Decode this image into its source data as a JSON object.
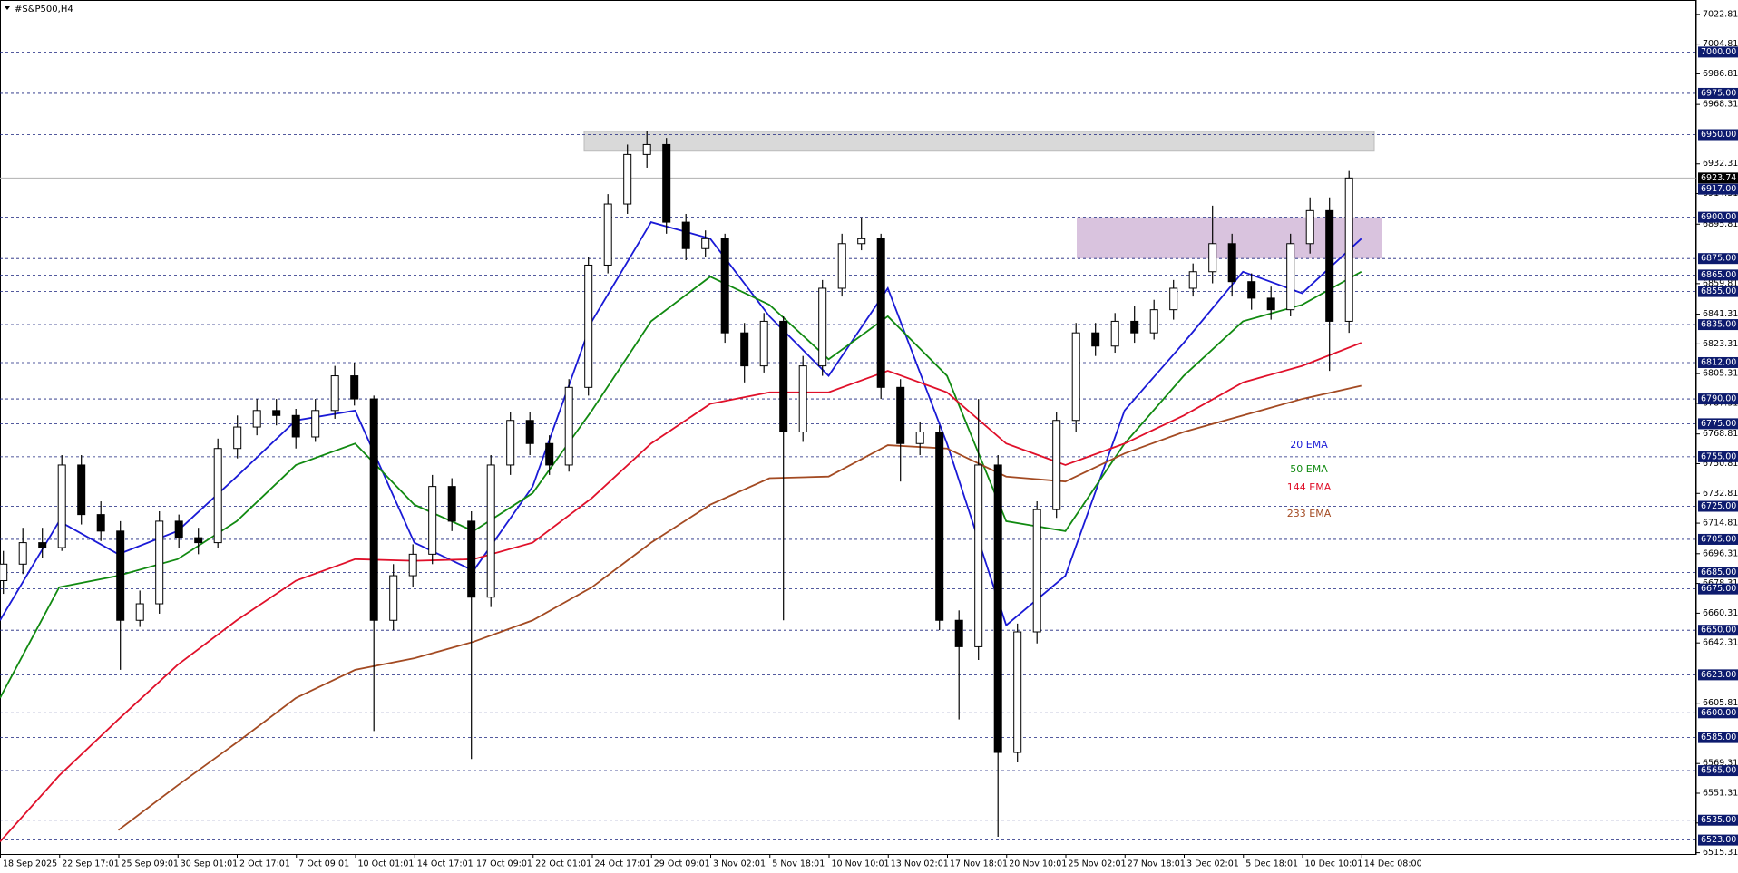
{
  "chart_data": {
    "type": "candlestick",
    "title": "#S&P500,H4",
    "ylim": [
      6514,
      7031.5
    ],
    "yticks": [
      7022.81,
      7004.81,
      6986.81,
      6968.31,
      6932.31,
      6914.31,
      6895.81,
      6859.81,
      6841.31,
      6823.31,
      6805.31,
      6787.31,
      6768.81,
      6750.81,
      6732.81,
      6714.81,
      6696.31,
      6678.31,
      6660.31,
      6642.31,
      6605.81,
      6569.31,
      6551.31,
      6533.31,
      6515.31
    ],
    "levels": [
      {
        "value": 7000,
        "label": "7000.00"
      },
      {
        "value": 6975,
        "label": "6975.00"
      },
      {
        "value": 6950,
        "label": "6950.00"
      },
      {
        "value": 6917,
        "label": "6917.00"
      },
      {
        "value": 6900,
        "label": "6900.00"
      },
      {
        "value": 6875,
        "label": "6875.00"
      },
      {
        "value": 6865,
        "label": "6865.00"
      },
      {
        "value": 6855,
        "label": "6855.00"
      },
      {
        "value": 6835,
        "label": "6835.00"
      },
      {
        "value": 6812,
        "label": "6812.00"
      },
      {
        "value": 6790,
        "label": "6790.00"
      },
      {
        "value": 6775,
        "label": "6775.00"
      },
      {
        "value": 6755,
        "label": "6755.00"
      },
      {
        "value": 6725,
        "label": "6725.00"
      },
      {
        "value": 6705,
        "label": "6705.00"
      },
      {
        "value": 6685,
        "label": "6685.00"
      },
      {
        "value": 6675,
        "label": "6675.00"
      },
      {
        "value": 6650,
        "label": "6650.00"
      },
      {
        "value": 6623,
        "label": "6623.00"
      },
      {
        "value": 6600,
        "label": "6600.00"
      },
      {
        "value": 6585,
        "label": "6585.00"
      },
      {
        "value": 6565,
        "label": "6565.00"
      },
      {
        "value": 6535,
        "label": "6535.00"
      },
      {
        "value": 6523,
        "label": "6523.00"
      }
    ],
    "current_price": 6923.74,
    "zones": [
      {
        "low": 6940,
        "high": 6952,
        "color": "#d9d9d9"
      },
      {
        "low": 6875,
        "high": 6900,
        "color": "#d9c3de"
      }
    ],
    "x_labels": [
      "18 Sep 2025",
      "22 Sep 17:01",
      "25 Sep 09:01",
      "30 Sep 01:01",
      "2 Oct 17:01",
      "7 Oct 09:01",
      "10 Oct 01:01",
      "14 Oct 17:01",
      "17 Oct 09:01",
      "22 Oct 01:01",
      "24 Oct 17:01",
      "29 Oct 09:01",
      "3 Nov 02:01",
      "5 Nov 18:01",
      "10 Nov 10:01",
      "13 Nov 02:01",
      "17 Nov 18:01",
      "20 Nov 10:01",
      "25 Nov 02:01",
      "27 Nov 18:01",
      "3 Dec 02:01",
      "5 Dec 18:01",
      "10 Dec 10:01",
      "14 Dec 08:00"
    ],
    "candles": {
      "open": [
        6680,
        6690,
        6703,
        6700,
        6750,
        6720,
        6710,
        6656,
        6666,
        6716,
        6706,
        6703,
        6760,
        6773,
        6783,
        6780,
        6767,
        6783,
        6804,
        6790,
        6656,
        6683,
        6696,
        6737,
        6716,
        6670,
        6750,
        6777,
        6763,
        6750,
        6797,
        6871,
        6908,
        6938,
        6944,
        6897,
        6881,
        6887,
        6830,
        6810,
        6837,
        6770,
        6810,
        6857,
        6884,
        6887,
        6797,
        6763,
        6770,
        6656,
        6640,
        6750,
        6576,
        6649,
        6723,
        6777,
        6830,
        6822,
        6837,
        6830,
        6844,
        6857,
        6867,
        6884,
        6861,
        6851,
        6844,
        6884,
        6904,
        6837
      ],
      "high": [
        6698,
        6712,
        6712,
        6756,
        6756,
        6728,
        6716,
        6674,
        6722,
        6720,
        6712,
        6766,
        6780,
        6790,
        6790,
        6784,
        6790,
        6810,
        6812,
        6792,
        6690,
        6702,
        6744,
        6742,
        6722,
        6756,
        6782,
        6782,
        6768,
        6802,
        6876,
        6914,
        6944,
        6952,
        6948,
        6902,
        6892,
        6890,
        6836,
        6842,
        6840,
        6816,
        6862,
        6890,
        6900,
        6890,
        6802,
        6776,
        6774,
        6662,
        6790,
        6756,
        6654,
        6728,
        6782,
        6836,
        6836,
        6842,
        6846,
        6850,
        6862,
        6872,
        6907,
        6890,
        6866,
        6858,
        6890,
        6912,
        6912,
        6928
      ],
      "low": [
        6672,
        6684,
        6694,
        6698,
        6714,
        6704,
        6626,
        6652,
        6660,
        6700,
        6696,
        6700,
        6754,
        6768,
        6774,
        6760,
        6764,
        6778,
        6786,
        6589,
        6650,
        6676,
        6690,
        6710,
        6572,
        6664,
        6744,
        6756,
        6744,
        6746,
        6792,
        6866,
        6902,
        6930,
        6890,
        6874,
        6876,
        6824,
        6800,
        6806,
        6656,
        6764,
        6804,
        6852,
        6880,
        6790,
        6740,
        6756,
        6650,
        6596,
        6632,
        6525,
        6570,
        6642,
        6718,
        6770,
        6816,
        6818,
        6824,
        6826,
        6838,
        6852,
        6860,
        6852,
        6844,
        6838,
        6840,
        6878,
        6807,
        6830
      ],
      "close": [
        6690,
        6703,
        6700,
        6750,
        6720,
        6710,
        6656,
        6666,
        6716,
        6706,
        6703,
        6760,
        6773,
        6783,
        6780,
        6767,
        6783,
        6804,
        6790,
        6656,
        6683,
        6696,
        6737,
        6716,
        6670,
        6750,
        6777,
        6763,
        6750,
        6797,
        6871,
        6908,
        6938,
        6944,
        6897,
        6881,
        6887,
        6830,
        6810,
        6837,
        6770,
        6810,
        6857,
        6884,
        6887,
        6797,
        6763,
        6770,
        6656,
        6640,
        6750,
        6576,
        6649,
        6723,
        6777,
        6830,
        6822,
        6837,
        6830,
        6844,
        6857,
        6867,
        6884,
        6861,
        6851,
        6844,
        6884,
        6904,
        6837,
        6923.74
      ]
    },
    "series": [
      {
        "name": "20 EMA",
        "color": "#1a1ad6",
        "values": [
          6656,
          6716,
          6696,
          6710,
          6743,
          6777,
          6783,
          6703,
          6686,
          6737,
          6837,
          6897,
          6887,
          6840,
          6804,
          6857,
          6763,
          6653,
          6683,
          6783,
          6824,
          6867,
          6854,
          6887
        ]
      },
      {
        "name": "50 EMA",
        "color": "#118a11",
        "values": [
          6609,
          6676,
          6683,
          6693,
          6716,
          6750,
          6763,
          6726,
          6710,
          6733,
          6783,
          6837,
          6864,
          6847,
          6814,
          6840,
          6804,
          6716,
          6710,
          6763,
          6804,
          6837,
          6847,
          6867
        ]
      },
      {
        "name": "144 EMA",
        "color": "#e0102a",
        "values": [
          6522,
          6562,
          6596,
          6629,
          6656,
          6680,
          6693,
          6692,
          6693,
          6703,
          6730,
          6763,
          6787,
          6794,
          6794,
          6807,
          6794,
          6763,
          6750,
          6763,
          6780,
          6800,
          6810,
          6824
        ]
      },
      {
        "name": "233 EMA",
        "color": "#a34a22",
        "values": [
          null,
          null,
          6529,
          6556,
          6582,
          6609,
          6626,
          6633,
          6643,
          6656,
          6676,
          6703,
          6726,
          6742,
          6743,
          6762,
          6760,
          6743,
          6740,
          6757,
          6770,
          6780,
          6790,
          6798
        ]
      }
    ]
  }
}
